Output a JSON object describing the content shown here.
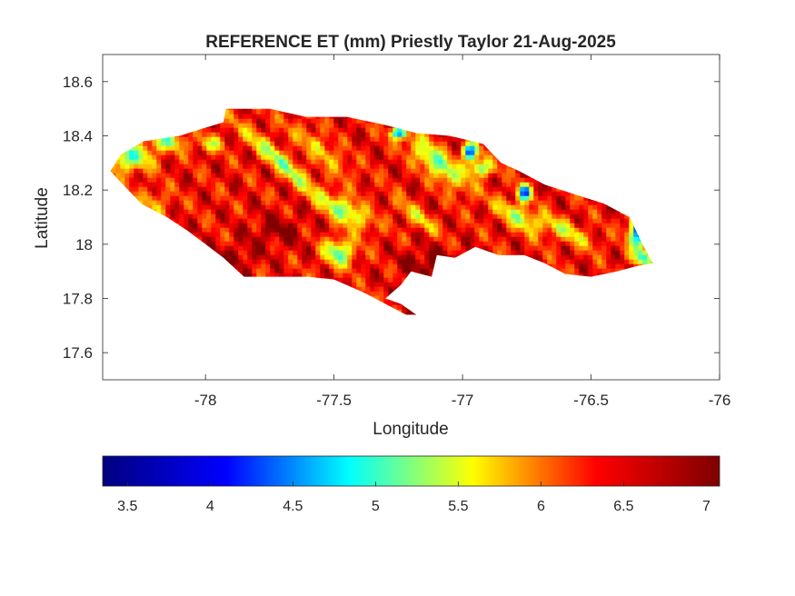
{
  "chart_data": {
    "type": "heatmap",
    "title": "REFERENCE ET (mm) Priestly Taylor 21-Aug-2025",
    "xlabel": "Longitude",
    "ylabel": "Latitude",
    "xlim": [
      -78.4,
      -76
    ],
    "ylim": [
      17.5,
      18.7
    ],
    "xticks": [
      -78,
      -77.5,
      -77,
      -76.5,
      -76
    ],
    "yticks": [
      17.6,
      17.8,
      18,
      18.2,
      18.4,
      18.6
    ],
    "grid": false,
    "colormap": "jet",
    "colorbar": {
      "placement": "bottom",
      "range": [
        3.35,
        7.08
      ],
      "ticks": [
        3.5,
        4,
        4.5,
        5,
        5.5,
        6,
        6.5,
        7
      ],
      "stops": [
        "#00007f",
        "#0000ff",
        "#00ffff",
        "#ffff00",
        "#ff0000",
        "#7f0000"
      ]
    },
    "outline": [
      [
        -78.37,
        18.27
      ],
      [
        -78.33,
        18.33
      ],
      [
        -78.24,
        18.38
      ],
      [
        -78.1,
        18.4
      ],
      [
        -78.0,
        18.43
      ],
      [
        -77.93,
        18.45
      ],
      [
        -77.92,
        18.5
      ],
      [
        -77.75,
        18.5
      ],
      [
        -77.61,
        18.47
      ],
      [
        -77.45,
        18.47
      ],
      [
        -77.3,
        18.44
      ],
      [
        -77.18,
        18.41
      ],
      [
        -77.05,
        18.4
      ],
      [
        -76.92,
        18.37
      ],
      [
        -76.85,
        18.3
      ],
      [
        -76.78,
        18.27
      ],
      [
        -76.68,
        18.22
      ],
      [
        -76.55,
        18.18
      ],
      [
        -76.45,
        18.15
      ],
      [
        -76.35,
        18.1
      ],
      [
        -76.3,
        18.0
      ],
      [
        -76.26,
        17.93
      ],
      [
        -76.32,
        17.92
      ],
      [
        -76.4,
        17.9
      ],
      [
        -76.5,
        17.88
      ],
      [
        -76.6,
        17.89
      ],
      [
        -76.68,
        17.93
      ],
      [
        -76.76,
        17.96
      ],
      [
        -76.86,
        17.96
      ],
      [
        -76.95,
        17.99
      ],
      [
        -77.03,
        17.95
      ],
      [
        -77.1,
        17.96
      ],
      [
        -77.12,
        17.88
      ],
      [
        -77.2,
        17.9
      ],
      [
        -77.24,
        17.85
      ],
      [
        -77.3,
        17.8
      ],
      [
        -77.24,
        17.78
      ],
      [
        -77.18,
        17.74
      ],
      [
        -77.22,
        17.74
      ],
      [
        -77.3,
        17.78
      ],
      [
        -77.38,
        17.82
      ],
      [
        -77.5,
        17.87
      ],
      [
        -77.6,
        17.88
      ],
      [
        -77.75,
        17.88
      ],
      [
        -77.85,
        17.88
      ],
      [
        -77.93,
        17.95
      ],
      [
        -78.0,
        18.0
      ],
      [
        -78.07,
        18.05
      ],
      [
        -78.15,
        18.1
      ],
      [
        -78.25,
        18.15
      ],
      [
        -78.32,
        18.22
      ]
    ],
    "field": {
      "base": 6.6,
      "features": [
        {
          "lon": -78.3,
          "lat": 18.32,
          "amp": -1.5,
          "rx": 0.09,
          "ry": 0.05,
          "angle": 0
        },
        {
          "lon": -78.15,
          "lat": 18.38,
          "amp": -1.2,
          "rx": 0.07,
          "ry": 0.035,
          "angle": 0
        },
        {
          "lon": -77.98,
          "lat": 18.37,
          "amp": -0.9,
          "rx": 0.05,
          "ry": 0.03,
          "angle": 0
        },
        {
          "lon": -78.2,
          "lat": 18.15,
          "amp": -0.6,
          "rx": 0.06,
          "ry": 0.05,
          "angle": 0
        },
        {
          "lon": -77.7,
          "lat": 18.3,
          "amp": -1.2,
          "rx": 0.2,
          "ry": 0.035,
          "angle": -40
        },
        {
          "lon": -77.55,
          "lat": 18.35,
          "amp": -0.9,
          "rx": 0.15,
          "ry": 0.03,
          "angle": -40
        },
        {
          "lon": -77.45,
          "lat": 18.12,
          "amp": -1.4,
          "rx": 0.1,
          "ry": 0.04,
          "angle": -30
        },
        {
          "lon": -77.48,
          "lat": 17.97,
          "amp": -1.5,
          "rx": 0.06,
          "ry": 0.05,
          "angle": 0
        },
        {
          "lon": -77.18,
          "lat": 18.1,
          "amp": -0.8,
          "rx": 0.1,
          "ry": 0.03,
          "angle": -35
        },
        {
          "lon": -77.1,
          "lat": 18.3,
          "amp": -1.6,
          "rx": 0.14,
          "ry": 0.04,
          "angle": -40
        },
        {
          "lon": -77.25,
          "lat": 18.41,
          "amp": -2.2,
          "rx": 0.03,
          "ry": 0.02,
          "angle": 0
        },
        {
          "lon": -76.97,
          "lat": 18.34,
          "amp": -2.6,
          "rx": 0.03,
          "ry": 0.03,
          "angle": 0
        },
        {
          "lon": -76.93,
          "lat": 18.28,
          "amp": -1.5,
          "rx": 0.05,
          "ry": 0.03,
          "angle": 0
        },
        {
          "lon": -76.76,
          "lat": 18.19,
          "amp": -2.5,
          "rx": 0.025,
          "ry": 0.03,
          "angle": 0
        },
        {
          "lon": -76.78,
          "lat": 18.1,
          "amp": -1.1,
          "rx": 0.1,
          "ry": 0.04,
          "angle": -30
        },
        {
          "lon": -76.6,
          "lat": 18.05,
          "amp": -0.9,
          "rx": 0.12,
          "ry": 0.035,
          "angle": -25
        },
        {
          "lon": -76.31,
          "lat": 18.05,
          "amp": -2.9,
          "rx": 0.04,
          "ry": 0.06,
          "angle": 0
        },
        {
          "lon": -76.3,
          "lat": 17.95,
          "amp": -1.4,
          "rx": 0.04,
          "ry": 0.03,
          "angle": 0
        },
        {
          "lon": -77.12,
          "lat": 17.93,
          "amp": 0.5,
          "rx": 0.12,
          "ry": 0.06,
          "angle": 0
        },
        {
          "lon": -77.72,
          "lat": 18.05,
          "amp": 0.45,
          "rx": 0.1,
          "ry": 0.06,
          "angle": 0
        },
        {
          "lon": -77.88,
          "lat": 17.95,
          "amp": 0.4,
          "rx": 0.08,
          "ry": 0.05,
          "angle": 0
        }
      ]
    }
  }
}
